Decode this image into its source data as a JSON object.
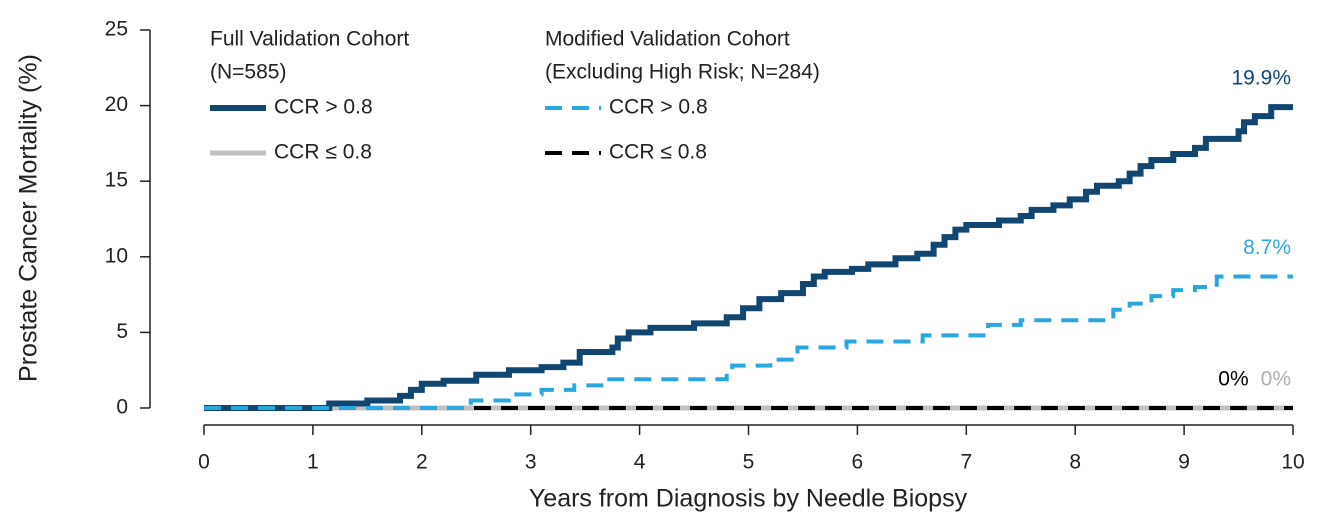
{
  "chart_data": {
    "type": "step-line",
    "x_label": "Years from Diagnosis by Needle Biopsy",
    "y_label": "Prostate Cancer Mortality (%)",
    "xlim": [
      0,
      10
    ],
    "ylim": [
      0,
      25
    ],
    "xticks": [
      0,
      1,
      2,
      3,
      4,
      5,
      6,
      7,
      8,
      9,
      10
    ],
    "yticks": [
      0,
      5,
      10,
      15,
      20,
      25
    ],
    "legend_groups": [
      {
        "title": "Full Validation Cohort",
        "subtitle": "(N=585)"
      },
      {
        "title": "Modified Validation Cohort",
        "subtitle": "(Excluding High Risk; N=284)"
      }
    ],
    "series": [
      {
        "name": "CCR ≤ 0.8",
        "color": "#c0c0c0",
        "dash": false,
        "x": [
          0,
          10
        ],
        "values": [
          0,
          0
        ]
      },
      {
        "name": "CCR ≤ 0.8",
        "color": "#000000",
        "dash": true,
        "x": [
          0,
          10
        ],
        "values": [
          0,
          0
        ]
      },
      {
        "name": "CCR > 0.8",
        "color": "#10466f",
        "dash": false,
        "x": [
          0,
          1.15,
          1.5,
          1.8,
          1.9,
          2.0,
          2.2,
          2.5,
          2.8,
          3.1,
          3.3,
          3.45,
          3.75,
          3.8,
          3.9,
          4.1,
          4.5,
          4.8,
          4.95,
          5.1,
          5.3,
          5.5,
          5.6,
          5.7,
          5.95,
          6.1,
          6.35,
          6.55,
          6.7,
          6.8,
          6.9,
          7.0,
          7.3,
          7.5,
          7.6,
          7.8,
          7.95,
          8.1,
          8.2,
          8.4,
          8.5,
          8.6,
          8.7,
          8.9,
          9.1,
          9.2,
          9.5,
          9.55,
          9.65,
          9.8,
          10
        ],
        "values": [
          0,
          0.3,
          0.5,
          0.8,
          1.2,
          1.6,
          1.8,
          2.2,
          2.5,
          2.7,
          3.0,
          3.7,
          4.0,
          4.6,
          5.0,
          5.3,
          5.6,
          6.0,
          6.6,
          7.2,
          7.6,
          8.2,
          8.7,
          9.0,
          9.2,
          9.5,
          9.9,
          10.2,
          10.8,
          11.3,
          11.8,
          12.1,
          12.4,
          12.7,
          13.1,
          13.4,
          13.8,
          14.3,
          14.7,
          15.0,
          15.5,
          16.0,
          16.4,
          16.8,
          17.2,
          17.8,
          18.3,
          18.9,
          19.3,
          19.9,
          19.9
        ]
      },
      {
        "name": "CCR > 0.8",
        "color": "#2aa7df",
        "dash": true,
        "x": [
          0,
          2.45,
          2.8,
          3.1,
          3.4,
          3.7,
          4.8,
          4.85,
          5.2,
          5.45,
          5.9,
          6.6,
          7.2,
          7.5,
          8.35,
          8.5,
          8.7,
          8.9,
          9.1,
          9.3,
          10
        ],
        "values": [
          0,
          0.5,
          0.9,
          1.2,
          1.5,
          1.9,
          2.3,
          2.8,
          3.2,
          4.0,
          4.4,
          4.8,
          5.5,
          5.8,
          6.5,
          6.9,
          7.4,
          7.8,
          8.0,
          8.7,
          8.7
        ]
      }
    ],
    "annotations": [
      {
        "label": "19.9%",
        "value": 19.9,
        "color": "#10466f"
      },
      {
        "label": "8.7%",
        "value": 8.7,
        "color": "#2aa7df"
      },
      {
        "label": "0%",
        "value": 0,
        "color": "#b0b0b0"
      },
      {
        "label": "0%",
        "value": 0,
        "color": "#000000"
      }
    ]
  }
}
